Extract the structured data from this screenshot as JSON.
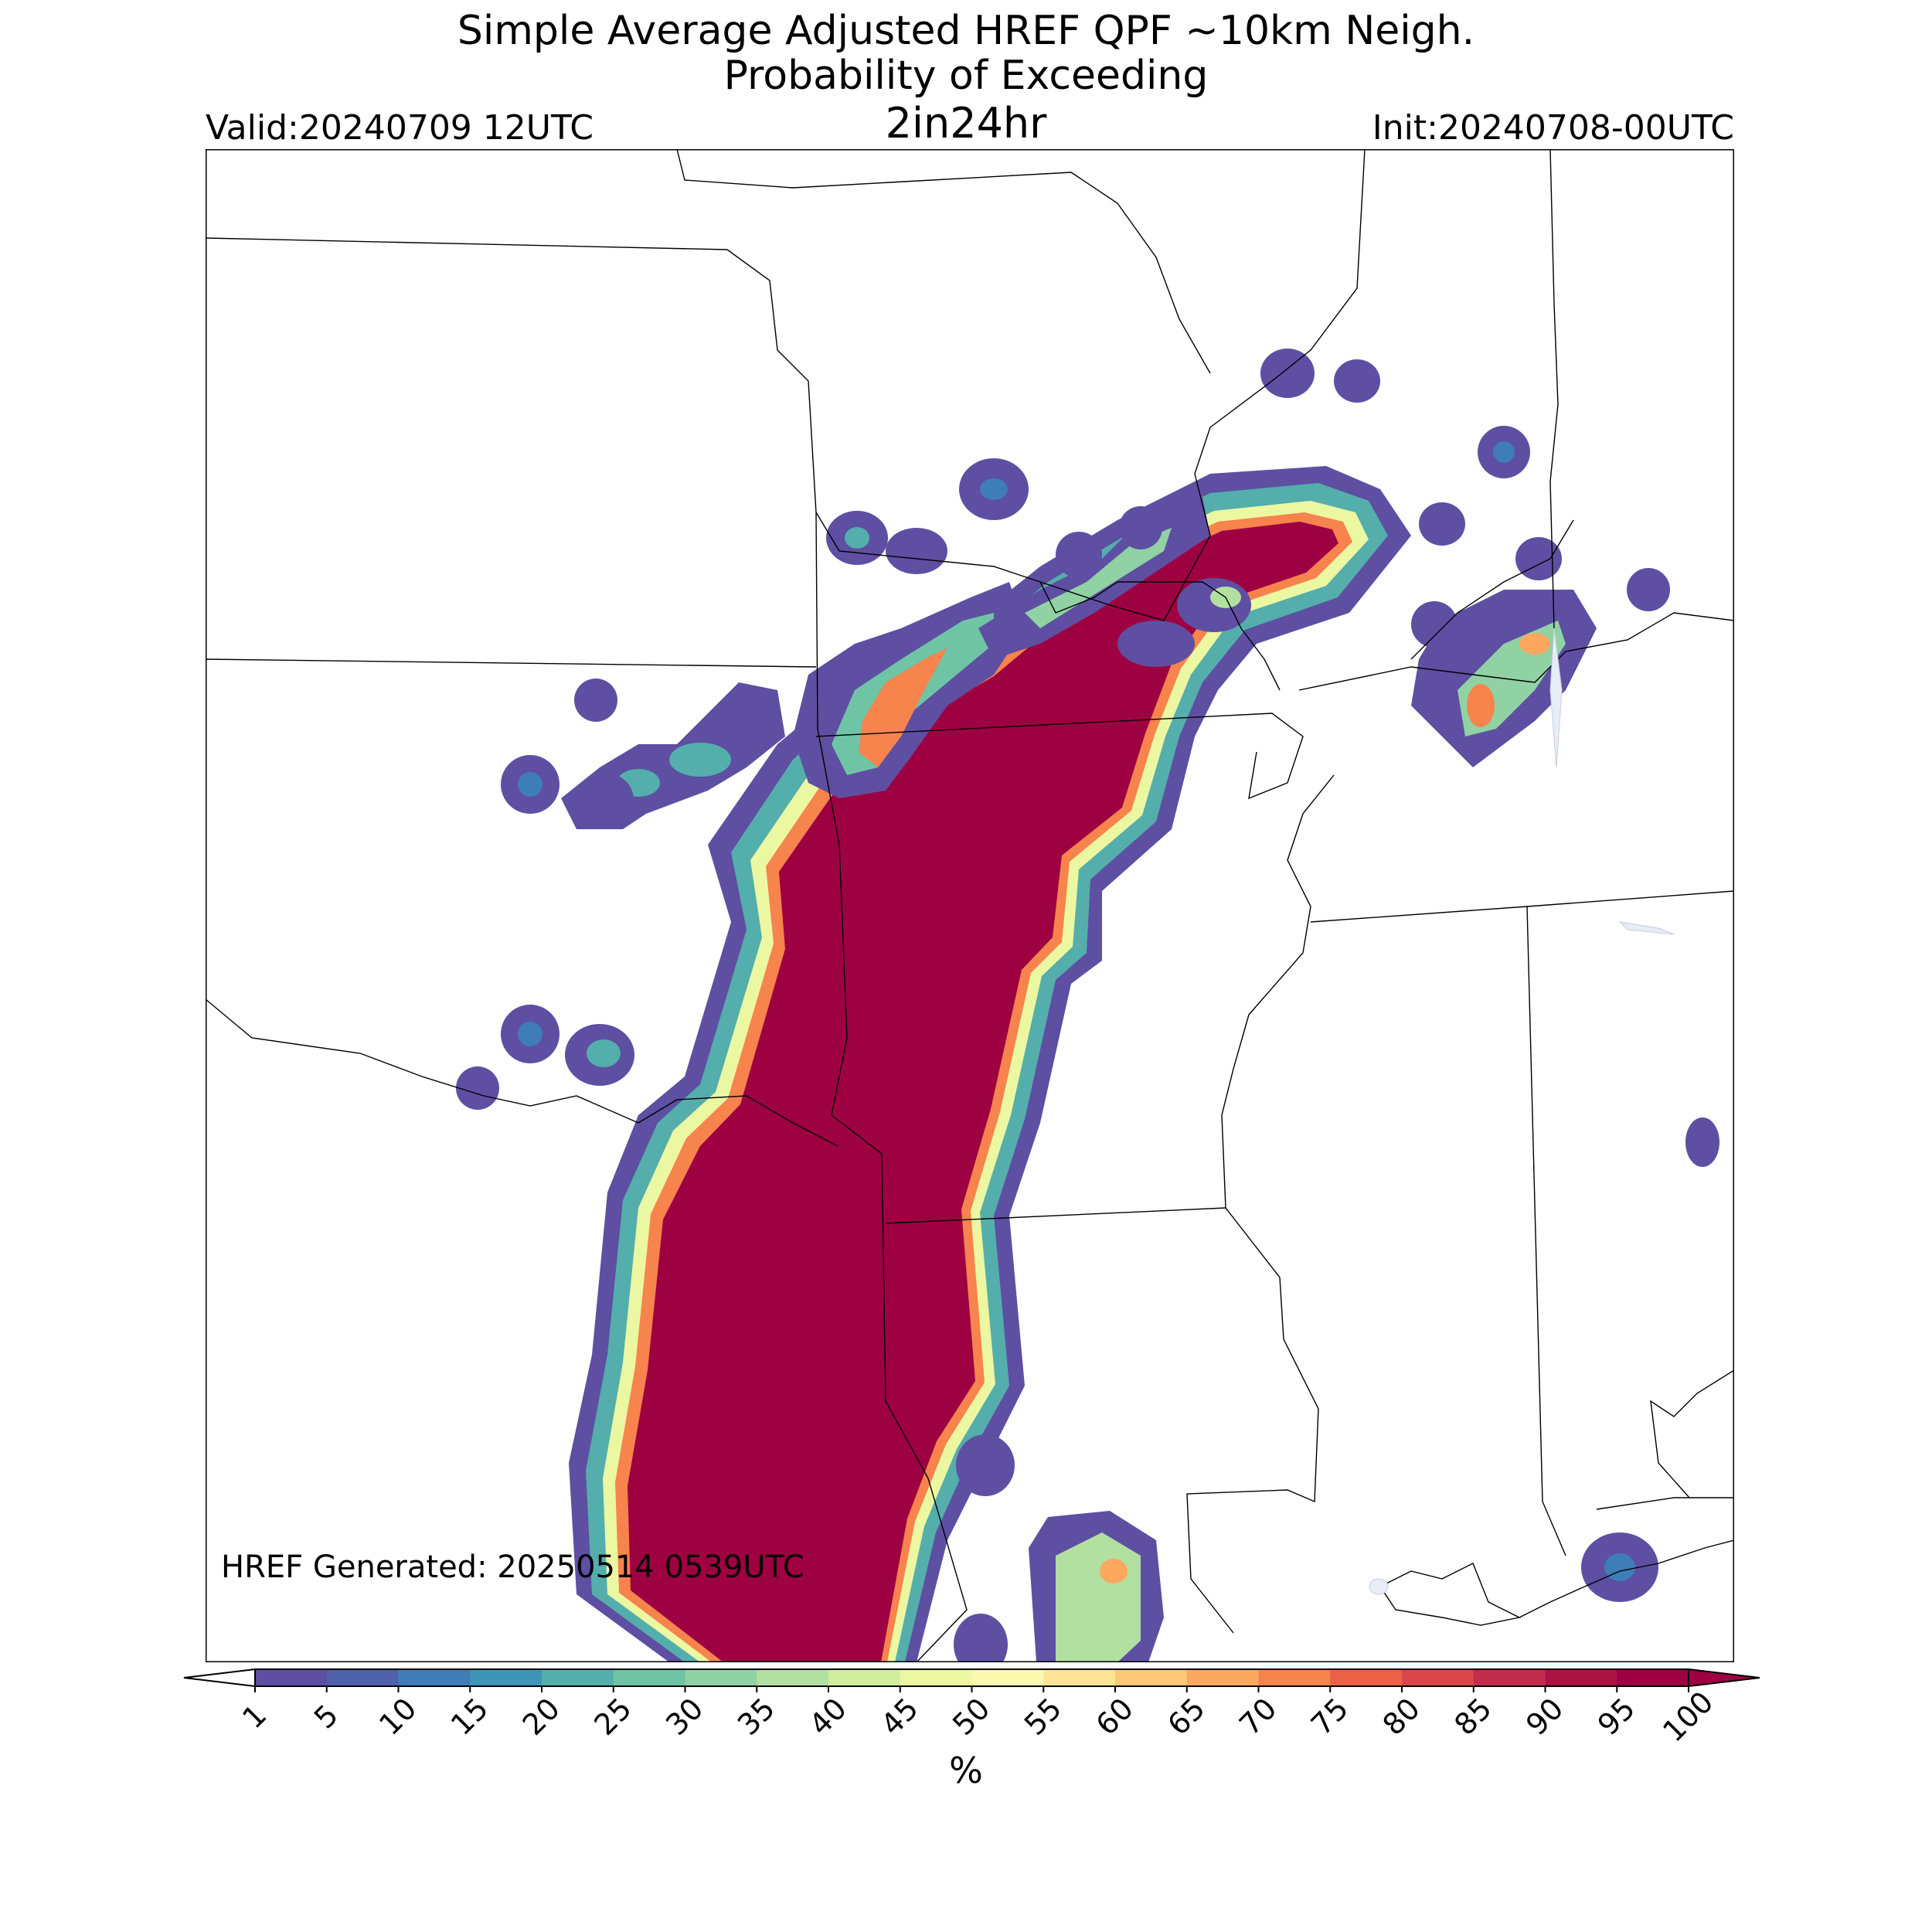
{
  "header": {
    "title_line1": "Simple Average Adjusted HREF QPF ~10km Neigh.",
    "title_line2": "Probability of Exceeding",
    "threshold": "2in24hr",
    "valid": "Valid:20240709 12UTC",
    "init": "Init:20240708-00UTC"
  },
  "footer": {
    "generated": "HREF Generated: 20250514 0539UTC"
  },
  "colorbar": {
    "unit": "%",
    "levels": [
      "1",
      "5",
      "10",
      "15",
      "20",
      "25",
      "30",
      "35",
      "40",
      "45",
      "50",
      "55",
      "60",
      "65",
      "70",
      "75",
      "80",
      "85",
      "90",
      "95",
      "100"
    ],
    "colors": [
      "#5e4fa2",
      "#4f61aa",
      "#3f7db6",
      "#3d95b8",
      "#54aeac",
      "#6fc4a5",
      "#90d2a4",
      "#b2e0a1",
      "#d1ed9c",
      "#ecf7a2",
      "#fbf8b0",
      "#fee596",
      "#fdc978",
      "#fca85e",
      "#f7834d",
      "#ec6145",
      "#d9474b",
      "#c22d4b",
      "#ac1345",
      "#9e0142"
    ],
    "under_color": "#ffffff",
    "over_color": "#9e0142"
  }
}
